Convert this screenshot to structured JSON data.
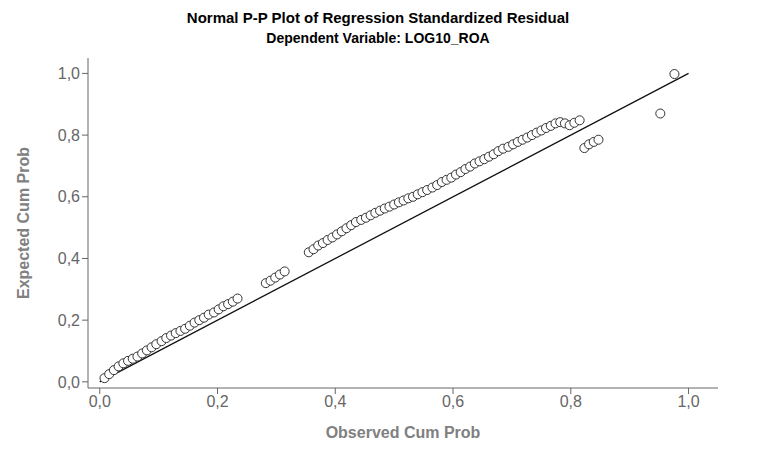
{
  "chart_data": {
    "type": "scatter",
    "title": "Normal P-P Plot of Regression Standardized Residual",
    "subtitle": "Dependent Variable: LOG10_ROA",
    "x_label": "Observed Cum Prob",
    "y_label": "Expected Cum Prob",
    "xlim": [
      -0.02,
      1.05
    ],
    "ylim": [
      -0.02,
      1.05
    ],
    "xticks": [
      {
        "value": 0.0,
        "label": "0,0"
      },
      {
        "value": 0.2,
        "label": "0,2"
      },
      {
        "value": 0.4,
        "label": "0,4"
      },
      {
        "value": 0.6,
        "label": "0,6"
      },
      {
        "value": 0.8,
        "label": "0,8"
      },
      {
        "value": 1.0,
        "label": "1,0"
      }
    ],
    "yticks": [
      {
        "value": 0.0,
        "label": "0,0"
      },
      {
        "value": 0.2,
        "label": "0,2"
      },
      {
        "value": 0.4,
        "label": "0,4"
      },
      {
        "value": 0.6,
        "label": "0,6"
      },
      {
        "value": 0.8,
        "label": "0,8"
      },
      {
        "value": 1.0,
        "label": "1,0"
      }
    ],
    "grid": false,
    "series": [
      {
        "type": "line",
        "color": "#111111",
        "x": [
          0.0,
          1.0
        ],
        "values": [
          0.0,
          1.0
        ]
      },
      {
        "type": "scatter",
        "marker": "circle",
        "color": "#333333",
        "x": [
          0.008,
          0.016,
          0.024,
          0.032,
          0.04,
          0.048,
          0.056,
          0.064,
          0.072,
          0.08,
          0.088,
          0.096,
          0.105,
          0.113,
          0.121,
          0.129,
          0.137,
          0.145,
          0.153,
          0.161,
          0.169,
          0.177,
          0.185,
          0.194,
          0.202,
          0.21,
          0.218,
          0.226,
          0.234,
          0.282,
          0.29,
          0.298,
          0.306,
          0.314,
          0.355,
          0.363,
          0.371,
          0.379,
          0.387,
          0.395,
          0.403,
          0.411,
          0.419,
          0.427,
          0.435,
          0.444,
          0.452,
          0.46,
          0.468,
          0.476,
          0.484,
          0.492,
          0.5,
          0.508,
          0.516,
          0.524,
          0.532,
          0.54,
          0.548,
          0.556,
          0.565,
          0.573,
          0.581,
          0.589,
          0.597,
          0.605,
          0.613,
          0.621,
          0.629,
          0.637,
          0.645,
          0.653,
          0.661,
          0.669,
          0.677,
          0.685,
          0.694,
          0.702,
          0.71,
          0.718,
          0.726,
          0.734,
          0.742,
          0.75,
          0.758,
          0.766,
          0.774,
          0.782,
          0.79,
          0.798,
          0.806,
          0.815,
          0.823,
          0.831,
          0.839,
          0.847,
          0.952,
          0.976
        ],
        "values": [
          0.012,
          0.025,
          0.038,
          0.05,
          0.06,
          0.068,
          0.075,
          0.082,
          0.092,
          0.102,
          0.112,
          0.122,
          0.132,
          0.142,
          0.15,
          0.158,
          0.165,
          0.172,
          0.182,
          0.192,
          0.2,
          0.208,
          0.218,
          0.225,
          0.235,
          0.245,
          0.252,
          0.26,
          0.27,
          0.32,
          0.328,
          0.338,
          0.348,
          0.358,
          0.42,
          0.43,
          0.442,
          0.45,
          0.46,
          0.468,
          0.478,
          0.488,
          0.498,
          0.508,
          0.518,
          0.525,
          0.532,
          0.54,
          0.548,
          0.555,
          0.562,
          0.568,
          0.575,
          0.582,
          0.588,
          0.595,
          0.6,
          0.608,
          0.615,
          0.622,
          0.63,
          0.638,
          0.648,
          0.655,
          0.662,
          0.672,
          0.68,
          0.69,
          0.698,
          0.708,
          0.715,
          0.722,
          0.73,
          0.738,
          0.748,
          0.756,
          0.762,
          0.77,
          0.778,
          0.785,
          0.792,
          0.8,
          0.808,
          0.815,
          0.823,
          0.83,
          0.838,
          0.842,
          0.838,
          0.832,
          0.84,
          0.848,
          0.758,
          0.77,
          0.778,
          0.785,
          0.87,
          0.998
        ]
      }
    ]
  }
}
